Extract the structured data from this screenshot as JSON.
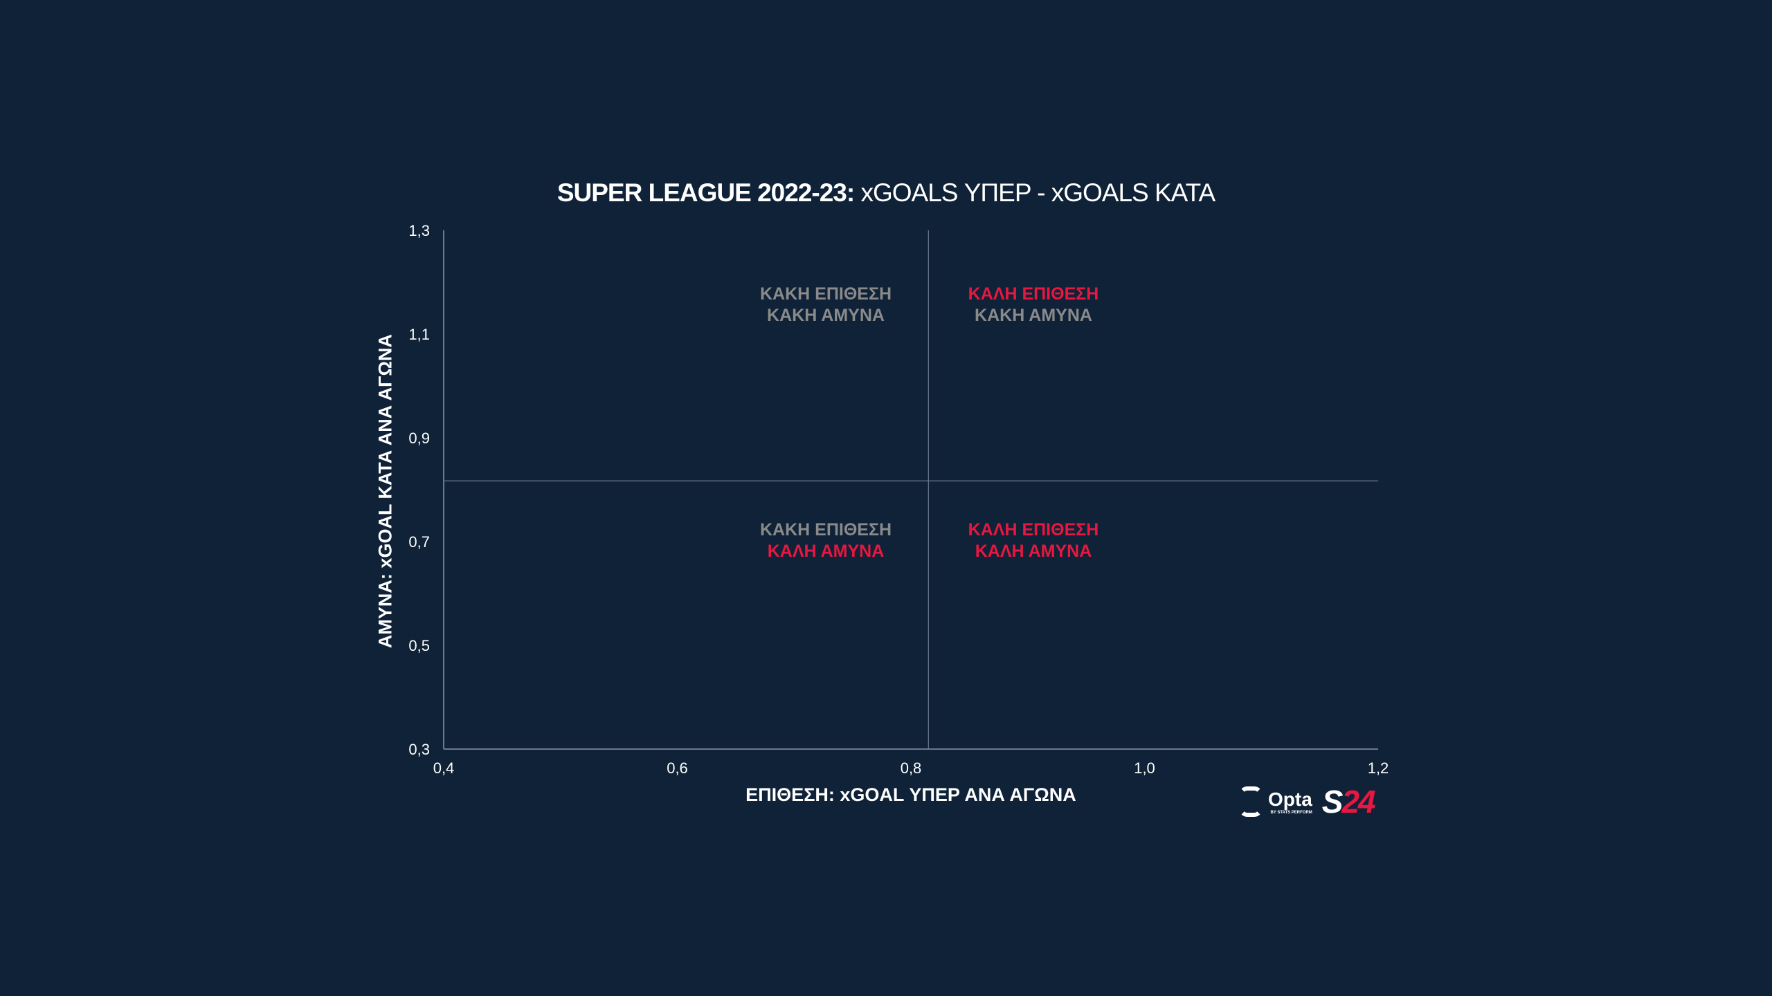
{
  "colors": {
    "background": "#0f2238",
    "axis": "#8896a8",
    "grid": "#6c7a8c",
    "neutral": "#8a8a8a",
    "accent": "#e8173f",
    "text": "#ffffff"
  },
  "logos": {
    "opta": "Opta",
    "opta_sub": "BY STATS PERFORM",
    "s24_s": "S",
    "s24_n": "24"
  },
  "chart_data": {
    "type": "scatter",
    "title_bold": "SUPER LEAGUE 2022-23:",
    "title_rest": " xGOALS ΥΠΕΡ - xGOALS ΚΑΤΑ",
    "xlabel": "ΕΠΙΘΕΣΗ: xGOAL ΥΠΕΡ ΑΝΑ ΑΓΩΝΑ",
    "ylabel": "ΑΜΥΝΑ: xGOAL ΚΑΤΑ ΑΝΑ ΑΓΩΝΑ",
    "xlim": [
      0.4,
      1.2
    ],
    "ylim": [
      0.3,
      1.3
    ],
    "xticks": [
      {
        "v": 0.4,
        "label": "0,4"
      },
      {
        "v": 0.6,
        "label": "0,6"
      },
      {
        "v": 0.8,
        "label": "0,8"
      },
      {
        "v": 1.0,
        "label": "1,0"
      },
      {
        "v": 1.2,
        "label": "1,2"
      }
    ],
    "yticks": [
      {
        "v": 0.3,
        "label": "0,3"
      },
      {
        "v": 0.5,
        "label": "0,5"
      },
      {
        "v": 0.7,
        "label": "0,7"
      },
      {
        "v": 0.9,
        "label": "0,9"
      },
      {
        "v": 1.1,
        "label": "1,1"
      },
      {
        "v": 1.3,
        "label": "1,3"
      }
    ],
    "reference_lines": {
      "x": 0.815,
      "y": 0.817
    },
    "grid": false,
    "points": [],
    "quadrant_labels": [
      {
        "position": "top-left",
        "lines": [
          {
            "text": "ΚΑΚΗ ΕΠΙΘΕΣΗ",
            "tone": "neutral"
          },
          {
            "text": "ΚΑΚΗ ΑΜΥΝΑ",
            "tone": "neutral"
          }
        ]
      },
      {
        "position": "top-right",
        "lines": [
          {
            "text": "ΚΑΛΗ ΕΠΙΘΕΣΗ",
            "tone": "accent"
          },
          {
            "text": "ΚΑΚΗ ΑΜΥΝΑ",
            "tone": "neutral"
          }
        ]
      },
      {
        "position": "bottom-left",
        "lines": [
          {
            "text": "ΚΑΚΗ ΕΠΙΘΕΣΗ",
            "tone": "neutral"
          },
          {
            "text": "ΚΑΛΗ ΑΜΥΝΑ",
            "tone": "accent"
          }
        ]
      },
      {
        "position": "bottom-right",
        "lines": [
          {
            "text": "ΚΑΛΗ ΕΠΙΘΕΣΗ",
            "tone": "accent"
          },
          {
            "text": "ΚΑΛΗ ΑΜΥΝΑ",
            "tone": "accent"
          }
        ]
      }
    ]
  }
}
